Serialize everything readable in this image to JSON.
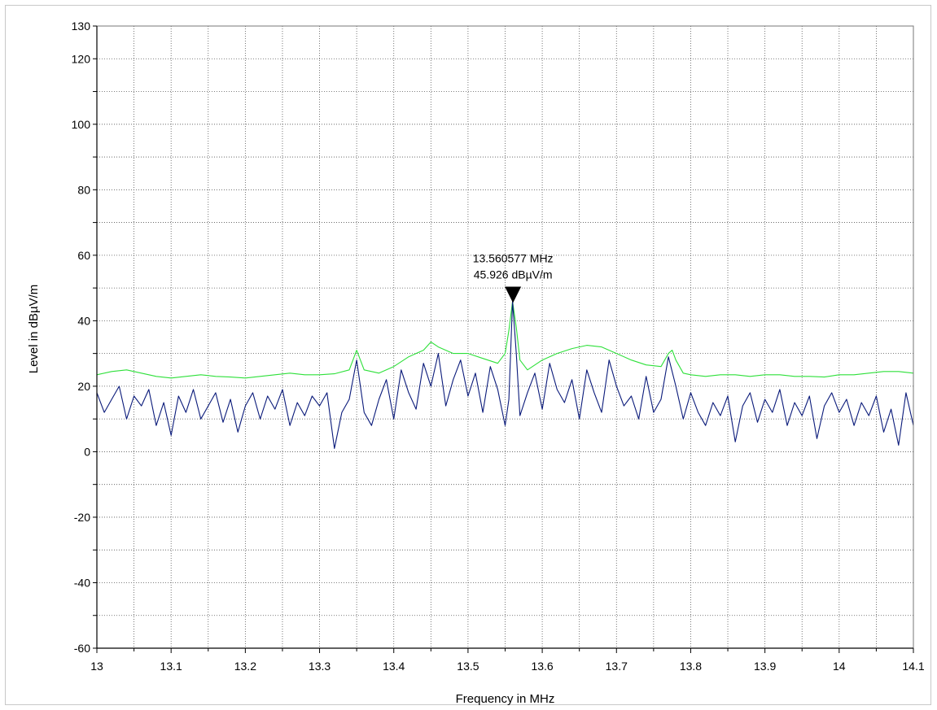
{
  "chart_data": {
    "type": "line",
    "title": "",
    "xlabel": "Frequency in MHz",
    "ylabel": "Level in dBµV/m",
    "xlim": [
      13.0,
      14.1
    ],
    "ylim": [
      -60,
      130
    ],
    "x_ticks": [
      "13",
      "13.1",
      "13.2",
      "13.3",
      "13.4",
      "13.5",
      "13.6",
      "13.7",
      "13.8",
      "13.9",
      "14",
      "14.1"
    ],
    "y_ticks": [
      "-60",
      "-40",
      "-20",
      "0",
      "20",
      "40",
      "60",
      "80",
      "100",
      "120",
      "130"
    ],
    "grid": true,
    "series": [
      {
        "color": "#2ee03a",
        "x": [
          13.0,
          13.02,
          13.04,
          13.06,
          13.08,
          13.1,
          13.12,
          13.14,
          13.16,
          13.18,
          13.2,
          13.22,
          13.24,
          13.26,
          13.28,
          13.3,
          13.32,
          13.34,
          13.345,
          13.35,
          13.355,
          13.36,
          13.38,
          13.4,
          13.42,
          13.44,
          13.45,
          13.46,
          13.48,
          13.5,
          13.52,
          13.54,
          13.55,
          13.555,
          13.56,
          13.565,
          13.57,
          13.58,
          13.6,
          13.62,
          13.64,
          13.66,
          13.68,
          13.7,
          13.72,
          13.74,
          13.76,
          13.77,
          13.775,
          13.78,
          13.79,
          13.8,
          13.82,
          13.84,
          13.86,
          13.88,
          13.9,
          13.92,
          13.94,
          13.96,
          13.98,
          14.0,
          14.02,
          14.04,
          14.06,
          14.08,
          14.1
        ],
        "values": [
          23.5,
          24.5,
          25,
          24,
          23,
          22.5,
          23,
          23.5,
          23,
          22.8,
          22.5,
          23,
          23.5,
          24,
          23.5,
          23.5,
          23.8,
          25,
          28,
          31,
          28,
          25,
          24,
          26,
          29,
          31,
          33.5,
          32,
          30,
          30,
          28.5,
          27,
          30,
          37,
          45.9,
          38,
          28,
          25,
          28,
          30,
          31.5,
          32.5,
          32,
          30,
          28,
          26.5,
          26,
          30,
          31,
          28,
          24,
          23.5,
          23,
          23.5,
          23.5,
          23,
          23.5,
          23.5,
          23,
          23,
          22.8,
          23.5,
          23.5,
          24,
          24.5,
          24.5,
          24
        ]
      },
      {
        "color": "#0a1a7a",
        "x": [
          13.0,
          13.01,
          13.02,
          13.03,
          13.04,
          13.05,
          13.06,
          13.07,
          13.08,
          13.09,
          13.1,
          13.11,
          13.12,
          13.13,
          13.14,
          13.15,
          13.16,
          13.17,
          13.18,
          13.19,
          13.2,
          13.21,
          13.22,
          13.23,
          13.24,
          13.25,
          13.26,
          13.27,
          13.28,
          13.29,
          13.3,
          13.31,
          13.32,
          13.33,
          13.34,
          13.35,
          13.36,
          13.37,
          13.38,
          13.39,
          13.4,
          13.41,
          13.42,
          13.43,
          13.44,
          13.45,
          13.46,
          13.47,
          13.48,
          13.49,
          13.5,
          13.51,
          13.52,
          13.53,
          13.54,
          13.55,
          13.555,
          13.56,
          13.565,
          13.57,
          13.58,
          13.59,
          13.6,
          13.61,
          13.62,
          13.63,
          13.64,
          13.65,
          13.66,
          13.67,
          13.68,
          13.69,
          13.7,
          13.71,
          13.72,
          13.73,
          13.74,
          13.75,
          13.76,
          13.77,
          13.78,
          13.79,
          13.8,
          13.81,
          13.82,
          13.83,
          13.84,
          13.85,
          13.86,
          13.87,
          13.88,
          13.89,
          13.9,
          13.91,
          13.92,
          13.93,
          13.94,
          13.95,
          13.96,
          13.97,
          13.98,
          13.99,
          14.0,
          14.01,
          14.02,
          14.03,
          14.04,
          14.05,
          14.06,
          14.07,
          14.08,
          14.09,
          14.1
        ],
        "values": [
          18,
          12,
          16,
          20,
          10,
          17,
          14,
          19,
          8,
          15,
          5,
          17,
          12,
          19,
          10,
          14,
          18,
          9,
          16,
          6,
          14,
          18,
          10,
          17,
          13,
          19,
          8,
          15,
          11,
          17,
          14,
          18,
          1,
          12,
          16,
          28,
          12,
          8,
          16,
          22,
          10,
          25,
          18,
          13,
          27,
          20,
          30,
          14,
          22,
          28,
          17,
          24,
          12,
          26,
          19,
          8,
          16,
          45.9,
          30,
          11,
          18,
          24,
          13,
          27,
          19,
          15,
          22,
          10,
          25,
          18,
          12,
          28,
          20,
          14,
          17,
          10,
          23,
          12,
          16,
          29,
          20,
          10,
          18,
          12,
          8,
          15,
          11,
          17,
          3,
          14,
          18,
          9,
          16,
          12,
          19,
          8,
          15,
          11,
          17,
          4,
          14,
          18,
          12,
          16,
          8,
          15,
          11,
          17,
          6,
          13,
          2,
          18,
          8
        ]
      }
    ],
    "annotations": [
      {
        "x": 13.560577,
        "y": 45.926,
        "line1": "13.560577 MHz",
        "line2": "45.926 dBµV/m"
      }
    ]
  }
}
